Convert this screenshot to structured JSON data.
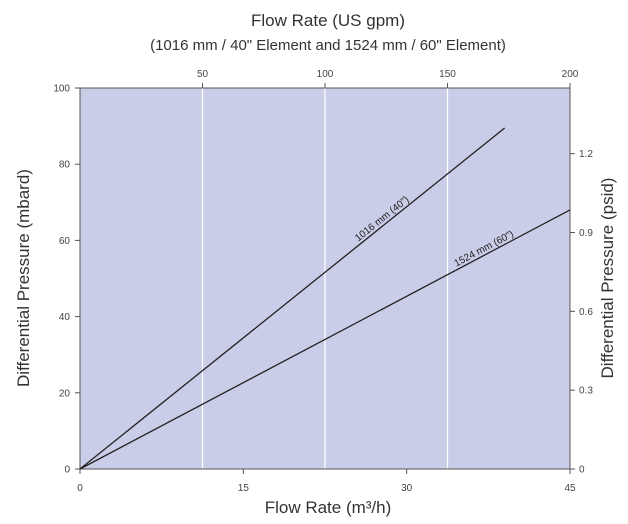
{
  "chart_data": {
    "type": "line",
    "title": "Flow Rate (US gpm)",
    "subtitle": "(1016 mm / 40\" Element and 1524 mm / 60\" Element)",
    "xlabel": "Flow Rate (m³/h)",
    "ylabel": "Differential Pressure (mbard)",
    "y2label": "Differential Pressure (psid)",
    "xlim": [
      0,
      45
    ],
    "ylim": [
      0,
      100
    ],
    "x2lim": [
      0,
      200
    ],
    "y2lim": [
      0,
      1.45
    ],
    "x_ticks": [
      0,
      15,
      30,
      45
    ],
    "y_ticks": [
      0,
      20,
      40,
      60,
      80,
      100
    ],
    "x2_ticks": [
      50,
      100,
      150,
      200
    ],
    "y2_ticks": [
      0,
      0.3,
      0.6,
      0.9,
      1.2
    ],
    "y2_tick_labels": [
      "0",
      "0.3",
      "0.6",
      "0.9",
      "1.2"
    ],
    "grid": true,
    "plot_background": "#c9cde8",
    "grid_color": "#ffffff",
    "line_color": "#222222",
    "series": [
      {
        "name": "1016 mm (40\")",
        "x": [
          0,
          39
        ],
        "y": [
          0,
          89.5
        ]
      },
      {
        "name": "1524 mm (60\")",
        "x": [
          0,
          45
        ],
        "y": [
          0,
          68
        ]
      }
    ]
  }
}
